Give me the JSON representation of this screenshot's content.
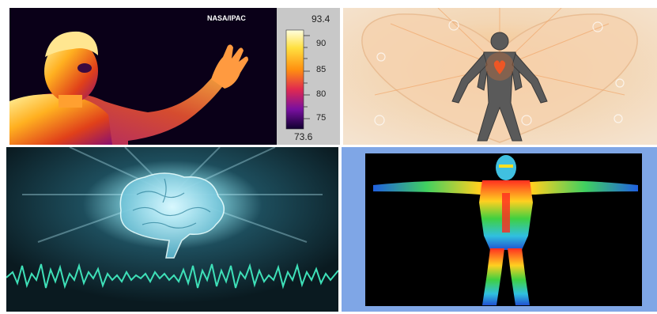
{
  "collage": {
    "panels": [
      {
        "id": "thermal-portrait",
        "credit": "NASA/IPAC",
        "scale": {
          "max_label": "93.4",
          "min_label": "73.6",
          "ticks": [
            "90",
            "85",
            "80",
            "75"
          ]
        }
      },
      {
        "id": "energy-heart-figure"
      },
      {
        "id": "glowing-brain-wave"
      },
      {
        "id": "body-thermogram"
      }
    ]
  },
  "colors": {
    "thermal_bg": "#0a0018",
    "scale_panel": "#c8c8c8",
    "heart_bg": "#f2dcc4",
    "brain_bg": "#0c1f26",
    "wave": "#3ee0b8",
    "thermogram_frame": "#7fa6e6"
  }
}
